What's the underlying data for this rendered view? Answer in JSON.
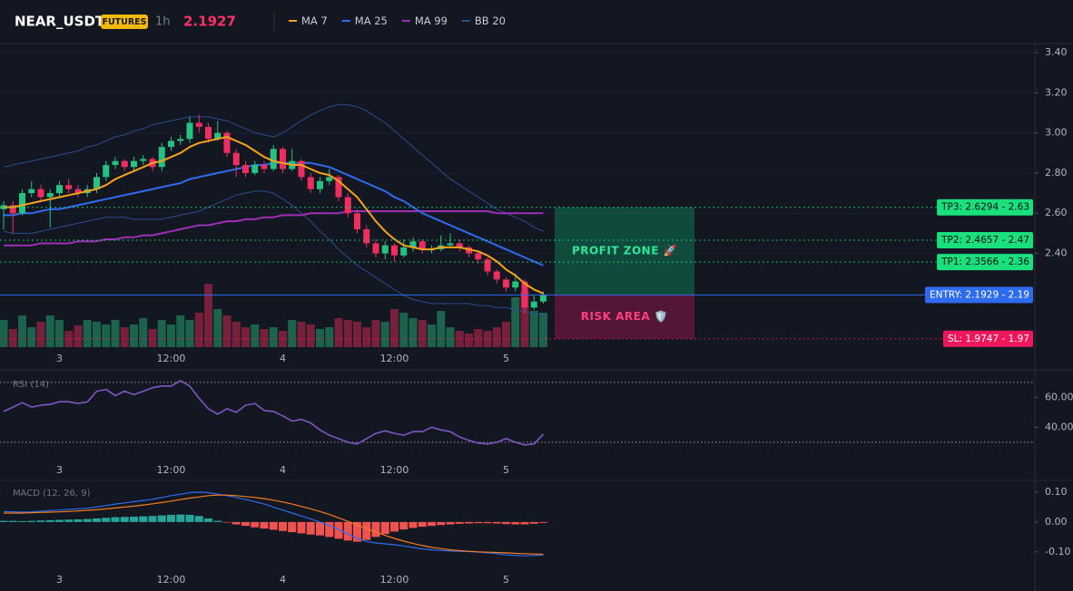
{
  "header": {
    "symbol": "NEAR_USDT",
    "badge": "FUTURES",
    "interval": "1h",
    "price": 2.1927,
    "price_color": "#ff2e63"
  },
  "chart_data": [
    {
      "type": "candlestick",
      "categories": [
        null,
        null,
        null,
        null,
        null,
        null,
        "3",
        null,
        null,
        null,
        null,
        null,
        null,
        null,
        null,
        null,
        null,
        null,
        "12:00",
        null,
        null,
        null,
        null,
        null,
        null,
        null,
        null,
        null,
        null,
        null,
        "4",
        null,
        null,
        null,
        null,
        null,
        null,
        null,
        null,
        null,
        null,
        null,
        "12:00",
        null,
        null,
        null,
        null,
        null,
        null,
        null,
        null,
        null,
        null,
        null,
        "5",
        null,
        null,
        null,
        null
      ],
      "open": [
        2.62,
        2.64,
        2.6,
        2.7,
        2.72,
        2.68,
        2.7,
        2.74,
        2.72,
        2.7,
        2.72,
        2.78,
        2.84,
        2.86,
        2.83,
        2.86,
        2.87,
        2.83,
        2.93,
        2.96,
        2.97,
        3.05,
        3.03,
        2.97,
        3.0,
        2.9,
        2.84,
        2.8,
        2.84,
        2.82,
        2.92,
        2.82,
        2.86,
        2.78,
        2.72,
        2.76,
        2.78,
        2.68,
        2.6,
        2.52,
        2.45,
        2.4,
        2.44,
        2.39,
        2.43,
        2.46,
        2.42,
        2.42,
        2.44,
        2.45,
        2.43,
        2.4,
        2.37,
        2.31,
        2.27,
        2.23,
        2.26,
        2.13,
        2.16
      ],
      "high": [
        2.66,
        2.66,
        2.72,
        2.76,
        2.74,
        2.72,
        2.76,
        2.77,
        2.74,
        2.74,
        2.8,
        2.86,
        2.88,
        2.87,
        2.88,
        2.89,
        2.88,
        2.95,
        2.98,
        2.99,
        3.08,
        3.09,
        3.05,
        3.06,
        3.01,
        2.92,
        2.86,
        2.86,
        2.86,
        2.94,
        2.93,
        2.92,
        2.87,
        2.8,
        2.78,
        2.82,
        2.79,
        2.7,
        2.62,
        2.54,
        2.47,
        2.46,
        2.45,
        2.47,
        2.48,
        2.47,
        2.44,
        2.49,
        2.5,
        2.47,
        2.44,
        2.41,
        2.38,
        2.32,
        2.28,
        2.3,
        2.27,
        2.19,
        2.21
      ],
      "low": [
        2.52,
        2.5,
        2.59,
        2.68,
        2.66,
        2.53,
        2.68,
        2.7,
        2.68,
        2.68,
        2.7,
        2.76,
        2.82,
        2.81,
        2.81,
        2.84,
        2.81,
        2.81,
        2.91,
        2.94,
        2.95,
        3.0,
        2.95,
        2.96,
        2.88,
        2.78,
        2.78,
        2.79,
        2.8,
        2.81,
        2.8,
        2.81,
        2.76,
        2.7,
        2.7,
        2.74,
        2.66,
        2.58,
        2.5,
        2.43,
        2.38,
        2.37,
        2.36,
        2.38,
        2.41,
        2.4,
        2.4,
        2.41,
        2.43,
        2.41,
        2.38,
        2.35,
        2.29,
        2.25,
        2.21,
        2.21,
        2.1,
        2.12,
        2.15
      ],
      "close": [
        2.64,
        2.6,
        2.7,
        2.72,
        2.68,
        2.7,
        2.74,
        2.72,
        2.7,
        2.72,
        2.78,
        2.84,
        2.86,
        2.83,
        2.86,
        2.87,
        2.83,
        2.93,
        2.96,
        2.97,
        3.05,
        3.03,
        2.97,
        3.0,
        2.9,
        2.84,
        2.8,
        2.84,
        2.82,
        2.92,
        2.82,
        2.86,
        2.78,
        2.72,
        2.76,
        2.78,
        2.68,
        2.6,
        2.52,
        2.45,
        2.4,
        2.44,
        2.39,
        2.43,
        2.46,
        2.42,
        2.42,
        2.44,
        2.45,
        2.43,
        2.4,
        2.37,
        2.31,
        2.27,
        2.23,
        2.26,
        2.13,
        2.16,
        2.1927
      ],
      "volume": [
        30,
        20,
        35,
        22,
        28,
        35,
        30,
        18,
        24,
        30,
        28,
        25,
        30,
        22,
        25,
        32,
        20,
        30,
        25,
        35,
        30,
        38,
        70,
        42,
        35,
        28,
        22,
        25,
        20,
        22,
        18,
        30,
        28,
        25,
        20,
        22,
        32,
        30,
        28,
        22,
        30,
        28,
        42,
        38,
        32,
        30,
        25,
        40,
        22,
        18,
        15,
        20,
        18,
        22,
        28,
        55,
        62,
        40,
        38
      ],
      "up_color": "#26c281",
      "down_color": "#ef2d5e",
      "series": [
        {
          "name": "MA 7",
          "color": "#f7a21b",
          "values": [
            2.63,
            2.63,
            2.64,
            2.65,
            2.66,
            2.67,
            2.68,
            2.69,
            2.7,
            2.71,
            2.72,
            2.74,
            2.77,
            2.79,
            2.81,
            2.83,
            2.85,
            2.86,
            2.88,
            2.9,
            2.93,
            2.95,
            2.96,
            2.97,
            2.98,
            2.96,
            2.94,
            2.91,
            2.88,
            2.86,
            2.85,
            2.84,
            2.84,
            2.82,
            2.8,
            2.79,
            2.76,
            2.72,
            2.68,
            2.62,
            2.56,
            2.51,
            2.47,
            2.44,
            2.43,
            2.42,
            2.42,
            2.43,
            2.43,
            2.43,
            2.42,
            2.41,
            2.39,
            2.36,
            2.32,
            2.29,
            2.25,
            2.22,
            2.2
          ]
        },
        {
          "name": "MA 25",
          "color": "#2f6bef",
          "values": [
            2.59,
            2.59,
            2.6,
            2.6,
            2.61,
            2.62,
            2.62,
            2.63,
            2.64,
            2.65,
            2.66,
            2.67,
            2.68,
            2.69,
            2.7,
            2.71,
            2.72,
            2.73,
            2.74,
            2.75,
            2.77,
            2.78,
            2.79,
            2.8,
            2.81,
            2.82,
            2.83,
            2.84,
            2.84,
            2.85,
            2.85,
            2.85,
            2.85,
            2.85,
            2.84,
            2.83,
            2.81,
            2.79,
            2.77,
            2.75,
            2.73,
            2.71,
            2.68,
            2.66,
            2.63,
            2.6,
            2.58,
            2.56,
            2.54,
            2.52,
            2.5,
            2.48,
            2.46,
            2.44,
            2.42,
            2.4,
            2.38,
            2.36,
            2.34
          ]
        },
        {
          "name": "MA 99",
          "color": "#9c2fb5",
          "values": [
            2.44,
            2.44,
            2.44,
            2.44,
            2.45,
            2.45,
            2.45,
            2.45,
            2.46,
            2.46,
            2.46,
            2.47,
            2.47,
            2.48,
            2.48,
            2.49,
            2.49,
            2.5,
            2.51,
            2.52,
            2.53,
            2.54,
            2.54,
            2.55,
            2.56,
            2.56,
            2.57,
            2.57,
            2.58,
            2.58,
            2.59,
            2.59,
            2.59,
            2.6,
            2.6,
            2.6,
            2.6,
            2.61,
            2.61,
            2.61,
            2.61,
            2.61,
            2.61,
            2.61,
            2.61,
            2.61,
            2.61,
            2.61,
            2.61,
            2.61,
            2.61,
            2.61,
            2.61,
            2.6,
            2.6,
            2.6,
            2.6,
            2.6,
            2.6
          ]
        }
      ],
      "bands": {
        "name": "BB 20",
        "color": "#2a4c8c",
        "upper": [
          2.83,
          2.84,
          2.85,
          2.86,
          2.87,
          2.88,
          2.89,
          2.9,
          2.91,
          2.93,
          2.94,
          2.96,
          2.98,
          2.99,
          3.01,
          3.02,
          3.04,
          3.05,
          3.06,
          3.07,
          3.08,
          3.08,
          3.08,
          3.07,
          3.06,
          3.04,
          3.02,
          3.0,
          2.99,
          2.98,
          3.0,
          3.03,
          3.06,
          3.09,
          3.11,
          3.13,
          3.14,
          3.14,
          3.13,
          3.11,
          3.08,
          3.05,
          3.01,
          2.97,
          2.93,
          2.89,
          2.85,
          2.81,
          2.77,
          2.74,
          2.71,
          2.68,
          2.65,
          2.62,
          2.6,
          2.58,
          2.56,
          2.53,
          2.51
        ],
        "lower": [
          2.51,
          2.5,
          2.5,
          2.5,
          2.51,
          2.52,
          2.53,
          2.54,
          2.55,
          2.56,
          2.57,
          2.58,
          2.58,
          2.58,
          2.57,
          2.57,
          2.57,
          2.57,
          2.58,
          2.59,
          2.6,
          2.61,
          2.63,
          2.65,
          2.67,
          2.69,
          2.7,
          2.71,
          2.71,
          2.7,
          2.67,
          2.64,
          2.6,
          2.56,
          2.51,
          2.47,
          2.42,
          2.38,
          2.34,
          2.31,
          2.28,
          2.25,
          2.22,
          2.19,
          2.17,
          2.16,
          2.15,
          2.15,
          2.15,
          2.15,
          2.15,
          2.14,
          2.14,
          2.13,
          2.13,
          2.12,
          2.11,
          2.1,
          2.09
        ]
      },
      "ylim": [
        1.924,
        3.445
      ],
      "yticks": [
        {
          "value": 2.4,
          "label": "2.40"
        },
        {
          "value": 2.6,
          "label": "2.60"
        },
        {
          "value": 2.8,
          "label": "2.80"
        },
        {
          "value": 3.0,
          "label": "3.00"
        },
        {
          "value": 3.2,
          "label": "3.20"
        },
        {
          "value": 3.4,
          "label": "3.40"
        }
      ],
      "grid": true,
      "zones": [
        {
          "label": "PROFIT ZONE 🚀",
          "range": [
            2.1929,
            2.6294
          ],
          "color": "#0e8a5f",
          "text_color": "#2ee89a"
        },
        {
          "label": "RISK AREA 🛡️",
          "range": [
            1.9747,
            2.1929
          ],
          "color": "#a3174f",
          "text_color": "#ff3d7f"
        }
      ],
      "levels": [
        {
          "label": "TP3: 2.6294 - 2.63",
          "value": 2.6294,
          "color": "#19e07d",
          "text_color": "#0b0e14",
          "style": "dotted"
        },
        {
          "label": "TP2: 2.4657 - 2.47",
          "value": 2.4657,
          "color": "#19e07d",
          "text_color": "#0b0e14",
          "style": "dotted"
        },
        {
          "label": "TP1: 2.3566 - 2.36",
          "value": 2.3566,
          "color": "#19e07d",
          "text_color": "#0b0e14",
          "style": "dotted"
        },
        {
          "label": "ENTRY: 2.1929 - 2.19",
          "value": 2.1929,
          "color": "#2f6bef",
          "text_color": "#ffffff",
          "style": "solid"
        },
        {
          "label": "SL: 1.9747 - 1.97",
          "value": 1.9747,
          "color": "#f0185b",
          "text_color": "#ffffff",
          "style": "dotted"
        }
      ]
    },
    {
      "type": "line",
      "title": "RSI (14)",
      "categories": [
        null,
        null,
        null,
        null,
        null,
        null,
        "3",
        null,
        null,
        null,
        null,
        null,
        null,
        null,
        null,
        null,
        null,
        null,
        "12:00",
        null,
        null,
        null,
        null,
        null,
        null,
        null,
        null,
        null,
        null,
        null,
        "4",
        null,
        null,
        null,
        null,
        null,
        null,
        null,
        null,
        null,
        null,
        null,
        "12:00",
        null,
        null,
        null,
        null,
        null,
        null,
        null,
        null,
        null,
        null,
        null,
        "5",
        null,
        null,
        null,
        null
      ],
      "values": [
        50.6,
        53.5,
        56.5,
        53.5,
        54.7,
        55.3,
        57.1,
        57.1,
        55.9,
        57.0,
        64.1,
        65.3,
        61.2,
        64.1,
        61.8,
        64.1,
        66.5,
        67.6,
        67.6,
        71.2,
        67.6,
        59.4,
        52.4,
        48.8,
        52.4,
        50.0,
        54.7,
        55.9,
        51.2,
        50.6,
        47.6,
        44.1,
        45.3,
        42.9,
        38.2,
        34.7,
        32.4,
        30.0,
        28.8,
        32.4,
        35.9,
        37.6,
        35.9,
        34.7,
        37.1,
        37.1,
        40.0,
        38.2,
        37.1,
        33.5,
        31.2,
        29.4,
        28.8,
        30.0,
        32.4,
        30.0,
        28.2,
        28.8,
        35.3
      ],
      "color": "#7e57c2",
      "levels": [
        30,
        70
      ],
      "ylim": [
        19,
        76
      ],
      "yticks": [
        {
          "value": 40,
          "label": "40.00"
        },
        {
          "value": 60,
          "label": "60.00"
        }
      ],
      "grid": false
    },
    {
      "type": "macd",
      "title": "MACD (12, 26, 9)",
      "categories": [
        null,
        null,
        null,
        null,
        null,
        null,
        "3",
        null,
        null,
        null,
        null,
        null,
        null,
        null,
        null,
        null,
        null,
        null,
        "12:00",
        null,
        null,
        null,
        null,
        null,
        null,
        null,
        null,
        null,
        null,
        null,
        "4",
        null,
        null,
        null,
        null,
        null,
        null,
        null,
        null,
        null,
        null,
        null,
        "12:00",
        null,
        null,
        null,
        null,
        null,
        null,
        null,
        null,
        null,
        null,
        null,
        "5",
        null,
        null,
        null,
        null
      ],
      "macd": [
        0.035,
        0.034,
        0.033,
        0.034,
        0.036,
        0.038,
        0.04,
        0.042,
        0.044,
        0.046,
        0.05,
        0.055,
        0.06,
        0.064,
        0.068,
        0.072,
        0.076,
        0.082,
        0.088,
        0.093,
        0.098,
        0.1,
        0.098,
        0.093,
        0.088,
        0.082,
        0.075,
        0.068,
        0.06,
        0.05,
        0.04,
        0.03,
        0.02,
        0.01,
        0.0,
        -0.012,
        -0.025,
        -0.04,
        -0.055,
        -0.065,
        -0.07,
        -0.073,
        -0.076,
        -0.08,
        -0.085,
        -0.09,
        -0.093,
        -0.095,
        -0.097,
        -0.098,
        -0.099,
        -0.1,
        -0.103,
        -0.106,
        -0.11,
        -0.112,
        -0.113,
        -0.112,
        -0.11
      ],
      "signal": [
        0.03,
        0.03,
        0.03,
        0.031,
        0.032,
        0.033,
        0.034,
        0.035,
        0.037,
        0.039,
        0.041,
        0.044,
        0.047,
        0.05,
        0.053,
        0.057,
        0.061,
        0.065,
        0.07,
        0.075,
        0.08,
        0.084,
        0.088,
        0.09,
        0.09,
        0.088,
        0.085,
        0.082,
        0.078,
        0.073,
        0.067,
        0.06,
        0.052,
        0.044,
        0.035,
        0.025,
        0.014,
        0.002,
        -0.01,
        -0.022,
        -0.034,
        -0.045,
        -0.055,
        -0.064,
        -0.072,
        -0.079,
        -0.085,
        -0.089,
        -0.093,
        -0.096,
        -0.098,
        -0.1,
        -0.101,
        -0.102,
        -0.103,
        -0.105,
        -0.106,
        -0.107,
        -0.108
      ],
      "histogram": [
        0.004,
        0.004,
        0.003,
        0.004,
        0.005,
        0.006,
        0.007,
        0.008,
        0.009,
        0.01,
        0.012,
        0.014,
        0.016,
        0.017,
        0.018,
        0.019,
        0.02,
        0.022,
        0.024,
        0.025,
        0.024,
        0.02,
        0.012,
        0.004,
        -0.002,
        -0.008,
        -0.013,
        -0.018,
        -0.022,
        -0.026,
        -0.03,
        -0.034,
        -0.038,
        -0.042,
        -0.045,
        -0.05,
        -0.056,
        -0.062,
        -0.066,
        -0.06,
        -0.05,
        -0.04,
        -0.032,
        -0.025,
        -0.02,
        -0.016,
        -0.013,
        -0.01,
        -0.008,
        -0.006,
        -0.005,
        -0.004,
        -0.004,
        -0.005,
        -0.007,
        -0.008,
        -0.008,
        -0.006,
        -0.003
      ],
      "macd_color": "#2f6bef",
      "signal_color": "#f57c1f",
      "hist_up_color": "#26a69a",
      "hist_down_color": "#ef5350",
      "ylim": [
        -0.158,
        0.133
      ],
      "yticks": [
        {
          "value": -0.1,
          "label": "-0.10"
        },
        {
          "value": 0,
          "label": "0.00"
        },
        {
          "value": 0.1,
          "label": "0.10"
        }
      ],
      "grid": false
    }
  ]
}
